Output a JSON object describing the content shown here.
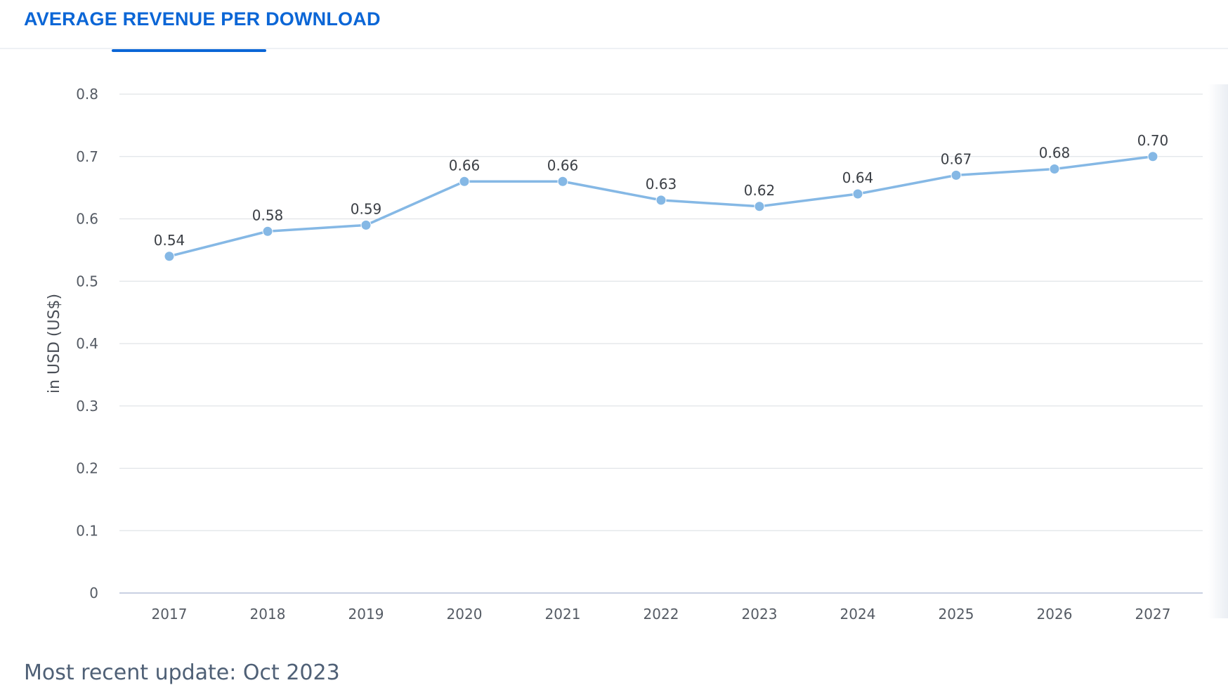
{
  "header": {
    "tab_label": "AVERAGE REVENUE PER DOWNLOAD"
  },
  "footer": {
    "update_text": "Most recent update: Oct 2023"
  },
  "colors": {
    "accent": "#0b66d6",
    "series_line": "#85b8e5",
    "series_point": "#85b8e5",
    "grid": "#e1e4e8"
  },
  "chart_data": {
    "type": "line",
    "title": "",
    "xlabel": "",
    "ylabel": "in USD (US$)",
    "categories": [
      "2017",
      "2018",
      "2019",
      "2020",
      "2021",
      "2022",
      "2023",
      "2024",
      "2025",
      "2026",
      "2027"
    ],
    "series": [
      {
        "values": [
          0.54,
          0.58,
          0.59,
          0.66,
          0.66,
          0.63,
          0.62,
          0.64,
          0.67,
          0.68,
          0.7
        ],
        "labels": [
          "0.54",
          "0.58",
          "0.59",
          "0.66",
          "0.66",
          "0.63",
          "0.62",
          "0.64",
          "0.67",
          "0.68",
          "0.70"
        ]
      }
    ],
    "ylim": [
      0,
      0.8
    ],
    "yticks": [
      "0",
      "0.1",
      "0.2",
      "0.3",
      "0.4",
      "0.5",
      "0.6",
      "0.7",
      "0.8"
    ],
    "grid": true,
    "legend": "none"
  }
}
